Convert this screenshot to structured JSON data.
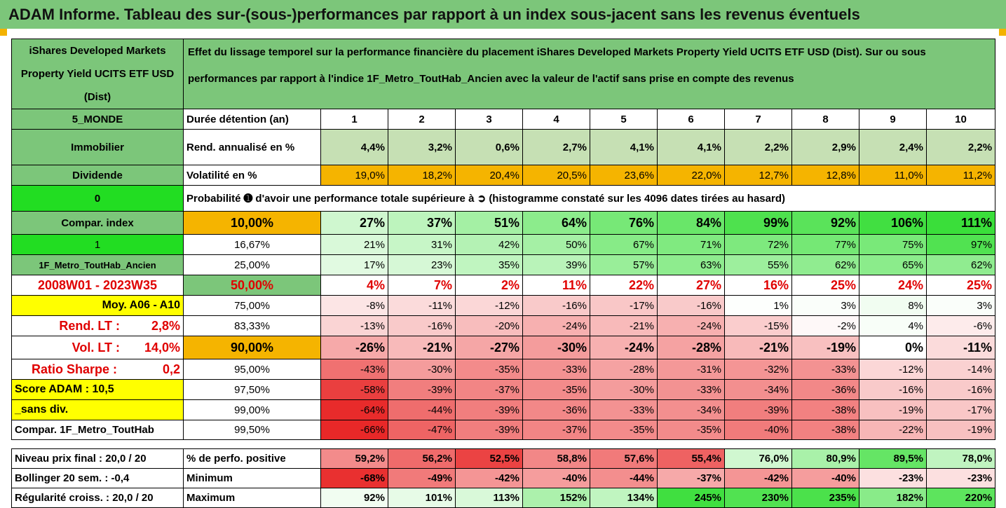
{
  "title": "ADAM Informe. Tableau des sur-(sous-)performances par rapport à un index sous-jacent sans les revenus éventuels",
  "fund_name": "iShares Developed Markets Property Yield UCITS ETF USD (Dist)",
  "header_text": "Effet du lissage temporel sur la performance financière du placement iShares Developed Markets Property Yield UCITS ETF USD (Dist). Sur ou sous performances par rapport à l'indice 1F_Metro_ToutHab_Ancien avec la valeur de l'actif sans prise en compte des revenus",
  "rows": {
    "r5": {
      "left": "5_MONDE",
      "label": "Durée détention (an)",
      "vals": [
        "1",
        "2",
        "3",
        "4",
        "5",
        "6",
        "7",
        "8",
        "9",
        "10"
      ]
    },
    "imm": {
      "left": "Immobilier",
      "label": "Rend. annualisé en %",
      "vals": [
        "4,4%",
        "3,2%",
        "0,6%",
        "2,7%",
        "4,1%",
        "4,1%",
        "2,2%",
        "2,9%",
        "2,4%",
        "2,2%"
      ]
    },
    "div": {
      "left": "Dividende",
      "label": "Volatilité en %",
      "vals": [
        "19,0%",
        "18,2%",
        "20,4%",
        "20,5%",
        "23,6%",
        "22,0%",
        "12,7%",
        "12,8%",
        "11,0%",
        "11,2%"
      ]
    },
    "prob": {
      "left": "0",
      "label": "Probabilité ➊ d'avoir une performance totale supérieure à ➲ (histogramme constaté sur les 4096 dates tirées au hasard)"
    },
    "p1": {
      "left": "Compar. index",
      "pct": "10,00%",
      "vals": [
        "27%",
        "37%",
        "51%",
        "64%",
        "76%",
        "84%",
        "99%",
        "92%",
        "106%",
        "111%"
      ]
    },
    "p2": {
      "left": "1",
      "pct": "16,67%",
      "vals": [
        "21%",
        "31%",
        "42%",
        "50%",
        "67%",
        "71%",
        "72%",
        "77%",
        "75%",
        "97%"
      ]
    },
    "p3": {
      "left": "1F_Metro_ToutHab_Ancien",
      "pct": "25,00%",
      "vals": [
        "17%",
        "23%",
        "35%",
        "39%",
        "57%",
        "63%",
        "55%",
        "62%",
        "65%",
        "62%"
      ]
    },
    "p4": {
      "left": "2008W01 - 2023W35",
      "pct": "50,00%",
      "vals": [
        "4%",
        "7%",
        "2%",
        "11%",
        "22%",
        "27%",
        "16%",
        "25%",
        "24%",
        "25%"
      ]
    },
    "p5": {
      "left": "Moy. A06 - A10",
      "pct": "75,00%",
      "vals": [
        "-8%",
        "-11%",
        "-12%",
        "-16%",
        "-17%",
        "-16%",
        "1%",
        "3%",
        "8%",
        "3%"
      ]
    },
    "p6": {
      "left_a": "Rend. LT :",
      "left_b": "2,8%",
      "pct": "83,33%",
      "vals": [
        "-13%",
        "-16%",
        "-20%",
        "-24%",
        "-21%",
        "-24%",
        "-15%",
        "-2%",
        "4%",
        "-6%"
      ]
    },
    "p7": {
      "left_a": "Vol. LT :",
      "left_b": "14,0%",
      "pct": "90,00%",
      "vals": [
        "-26%",
        "-21%",
        "-27%",
        "-30%",
        "-24%",
        "-28%",
        "-21%",
        "-19%",
        "0%",
        "-11%"
      ]
    },
    "p8": {
      "left_a": "Ratio Sharpe :",
      "left_b": "0,2",
      "pct": "95,00%",
      "vals": [
        "-43%",
        "-30%",
        "-35%",
        "-33%",
        "-28%",
        "-31%",
        "-32%",
        "-33%",
        "-12%",
        "-14%"
      ]
    },
    "p9": {
      "left": "Score ADAM : 10,5",
      "pct": "97,50%",
      "vals": [
        "-58%",
        "-39%",
        "-37%",
        "-35%",
        "-30%",
        "-33%",
        "-34%",
        "-36%",
        "-16%",
        "-16%"
      ]
    },
    "p10": {
      "left": "_sans div.",
      "pct": "99,00%",
      "vals": [
        "-64%",
        "-44%",
        "-39%",
        "-36%",
        "-33%",
        "-34%",
        "-39%",
        "-38%",
        "-19%",
        "-17%"
      ]
    },
    "p11": {
      "left": "Compar. 1F_Metro_ToutHab",
      "pct": "99,50%",
      "vals": [
        "-66%",
        "-47%",
        "-39%",
        "-37%",
        "-35%",
        "-35%",
        "-40%",
        "-38%",
        "-22%",
        "-19%"
      ]
    },
    "s1": {
      "left": "Niveau prix final : 20,0 / 20",
      "label": "% de perfo. positive",
      "vals": [
        "59,2%",
        "56,2%",
        "52,5%",
        "58,8%",
        "57,6%",
        "55,4%",
        "76,0%",
        "80,9%",
        "89,5%",
        "78,0%"
      ]
    },
    "s2": {
      "left": "Bollinger 20 sem. : -0,4",
      "label": "Minimum",
      "vals": [
        "-68%",
        "-49%",
        "-42%",
        "-40%",
        "-44%",
        "-37%",
        "-42%",
        "-40%",
        "-23%",
        "-23%"
      ]
    },
    "s3": {
      "left": "Régularité croiss. : 20,0 / 20",
      "label": "Maximum",
      "vals": [
        "92%",
        "101%",
        "113%",
        "152%",
        "134%",
        "245%",
        "230%",
        "235%",
        "182%",
        "220%"
      ]
    }
  },
  "colors": {
    "header_green": "#7cc67a",
    "bright_green": "#22dd22",
    "yellow": "#ffff00",
    "orange": "#f5b400",
    "light_green": "#c6e0b4",
    "accent_red": "#e00000"
  }
}
